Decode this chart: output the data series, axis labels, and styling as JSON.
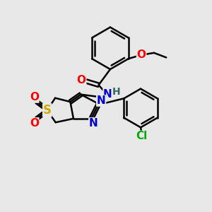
{
  "bg_color": "#e8e8e8",
  "bond_color": "#000000",
  "bond_width": 1.8,
  "atom_colors": {
    "N": "#0000cc",
    "O": "#ff0000",
    "S": "#ccaa00",
    "Cl": "#00aa00",
    "C": "#000000",
    "H": "#336666"
  },
  "font_size": 10,
  "fig_width": 3.0,
  "fig_height": 3.0,
  "dpi": 100
}
